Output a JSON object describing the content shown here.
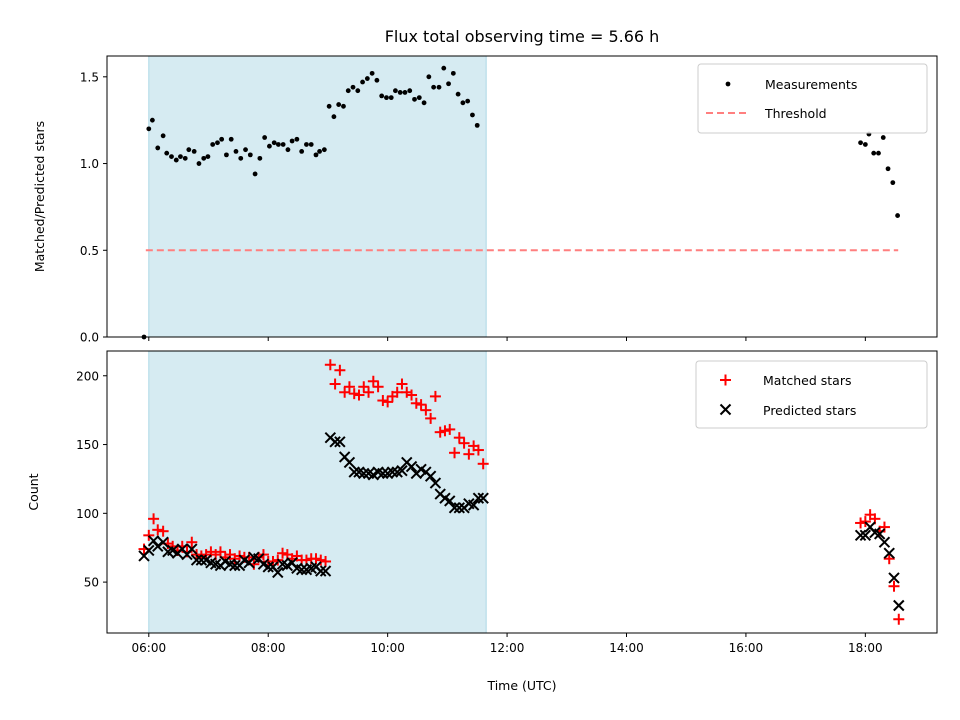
{
  "title": "Flux total observing time = 5.66 h",
  "colors": {
    "shade": "#add8e6",
    "measure": "#000000",
    "threshold": "#ff7f7f",
    "matched": "#ff0000",
    "predicted": "#000000"
  },
  "x_ticks": [
    "06:00",
    "08:00",
    "10:00",
    "12:00",
    "14:00",
    "16:00",
    "18:00"
  ],
  "xlabel": "Time (UTC)",
  "chart_data": [
    {
      "type": "scatter",
      "ylabel": "Matched/Predicted stars",
      "xlim": [
        5.3,
        19.2
      ],
      "ylim": [
        0,
        1.62
      ],
      "y_ticks": [
        "0.0",
        "0.5",
        "1.0",
        "1.5"
      ],
      "shaded_span": [
        6.0,
        11.65
      ],
      "legend": {
        "placement": "top-right",
        "measure_label": "Measurements",
        "threshold_label": "Threshold"
      },
      "threshold": {
        "value": 0.5,
        "x_range": [
          5.95,
          18.55
        ]
      },
      "measurements": [
        [
          5.92,
          0.0
        ],
        [
          6.0,
          1.2
        ],
        [
          6.06,
          1.25
        ],
        [
          6.15,
          1.09
        ],
        [
          6.24,
          1.16
        ],
        [
          6.3,
          1.06
        ],
        [
          6.38,
          1.04
        ],
        [
          6.46,
          1.02
        ],
        [
          6.53,
          1.04
        ],
        [
          6.61,
          1.03
        ],
        [
          6.67,
          1.08
        ],
        [
          6.76,
          1.07
        ],
        [
          6.84,
          1.0
        ],
        [
          6.92,
          1.03
        ],
        [
          6.99,
          1.04
        ],
        [
          7.07,
          1.11
        ],
        [
          7.15,
          1.12
        ],
        [
          7.22,
          1.14
        ],
        [
          7.3,
          1.05
        ],
        [
          7.38,
          1.14
        ],
        [
          7.46,
          1.07
        ],
        [
          7.54,
          1.03
        ],
        [
          7.62,
          1.08
        ],
        [
          7.7,
          1.05
        ],
        [
          7.78,
          0.94
        ],
        [
          7.86,
          1.03
        ],
        [
          7.94,
          1.15
        ],
        [
          8.02,
          1.1
        ],
        [
          8.1,
          1.12
        ],
        [
          8.17,
          1.11
        ],
        [
          8.25,
          1.11
        ],
        [
          8.33,
          1.08
        ],
        [
          8.4,
          1.13
        ],
        [
          8.48,
          1.14
        ],
        [
          8.56,
          1.07
        ],
        [
          8.64,
          1.11
        ],
        [
          8.72,
          1.11
        ],
        [
          8.8,
          1.05
        ],
        [
          8.86,
          1.07
        ],
        [
          8.94,
          1.08
        ],
        [
          9.02,
          1.33
        ],
        [
          9.1,
          1.27
        ],
        [
          9.18,
          1.34
        ],
        [
          9.26,
          1.33
        ],
        [
          9.34,
          1.42
        ],
        [
          9.42,
          1.44
        ],
        [
          9.5,
          1.42
        ],
        [
          9.58,
          1.47
        ],
        [
          9.66,
          1.49
        ],
        [
          9.74,
          1.52
        ],
        [
          9.82,
          1.48
        ],
        [
          9.9,
          1.39
        ],
        [
          9.98,
          1.38
        ],
        [
          10.06,
          1.38
        ],
        [
          10.13,
          1.42
        ],
        [
          10.21,
          1.41
        ],
        [
          10.29,
          1.41
        ],
        [
          10.37,
          1.42
        ],
        [
          10.45,
          1.37
        ],
        [
          10.53,
          1.38
        ],
        [
          10.61,
          1.35
        ],
        [
          10.69,
          1.5
        ],
        [
          10.77,
          1.44
        ],
        [
          10.86,
          1.44
        ],
        [
          10.94,
          1.55
        ],
        [
          11.02,
          1.46
        ],
        [
          11.1,
          1.52
        ],
        [
          11.18,
          1.4
        ],
        [
          11.26,
          1.35
        ],
        [
          11.34,
          1.36
        ],
        [
          11.42,
          1.28
        ],
        [
          11.5,
          1.22
        ],
        [
          17.92,
          1.12
        ],
        [
          18.0,
          1.11
        ],
        [
          18.06,
          1.17
        ],
        [
          18.14,
          1.06
        ],
        [
          18.22,
          1.06
        ],
        [
          18.3,
          1.15
        ],
        [
          18.38,
          0.97
        ],
        [
          18.46,
          0.89
        ],
        [
          18.54,
          0.7
        ]
      ]
    },
    {
      "type": "scatter",
      "ylabel": "Count",
      "xlim": [
        5.3,
        19.2
      ],
      "ylim": [
        13,
        218
      ],
      "y_ticks": [
        "50",
        "100",
        "150",
        "200"
      ],
      "shaded_span": [
        6.0,
        11.65
      ],
      "legend": {
        "placement": "top-right",
        "matched_label": "Matched stars",
        "predicted_label": "Predicted stars"
      },
      "matched": [
        [
          5.92,
          74
        ],
        [
          6.0,
          84
        ],
        [
          6.08,
          96
        ],
        [
          6.15,
          88
        ],
        [
          6.24,
          87
        ],
        [
          6.32,
          78
        ],
        [
          6.4,
          76
        ],
        [
          6.48,
          73
        ],
        [
          6.56,
          76
        ],
        [
          6.64,
          72
        ],
        [
          6.72,
          79
        ],
        [
          6.8,
          70
        ],
        [
          6.88,
          69
        ],
        [
          6.96,
          70
        ],
        [
          7.04,
          72
        ],
        [
          7.12,
          70
        ],
        [
          7.2,
          72
        ],
        [
          7.28,
          68
        ],
        [
          7.36,
          70
        ],
        [
          7.44,
          67
        ],
        [
          7.52,
          69
        ],
        [
          7.6,
          68
        ],
        [
          7.68,
          68
        ],
        [
          7.76,
          63
        ],
        [
          7.84,
          68
        ],
        [
          7.92,
          70
        ],
        [
          8.0,
          65
        ],
        [
          8.08,
          65
        ],
        [
          8.16,
          66
        ],
        [
          8.24,
          71
        ],
        [
          8.32,
          70
        ],
        [
          8.4,
          67
        ],
        [
          8.48,
          69
        ],
        [
          8.56,
          66
        ],
        [
          8.64,
          66
        ],
        [
          8.72,
          67
        ],
        [
          8.8,
          67
        ],
        [
          8.88,
          66
        ],
        [
          8.96,
          65
        ],
        [
          9.04,
          208
        ],
        [
          9.12,
          194
        ],
        [
          9.2,
          204
        ],
        [
          9.28,
          188
        ],
        [
          9.36,
          192
        ],
        [
          9.44,
          187
        ],
        [
          9.52,
          186
        ],
        [
          9.6,
          192
        ],
        [
          9.68,
          188
        ],
        [
          9.76,
          196
        ],
        [
          9.84,
          192
        ],
        [
          9.92,
          182
        ],
        [
          10.0,
          181
        ],
        [
          10.08,
          185
        ],
        [
          10.16,
          188
        ],
        [
          10.24,
          194
        ],
        [
          10.32,
          188
        ],
        [
          10.4,
          186
        ],
        [
          10.48,
          180
        ],
        [
          10.56,
          179
        ],
        [
          10.64,
          175
        ],
        [
          10.72,
          169
        ],
        [
          10.8,
          185
        ],
        [
          10.88,
          159
        ],
        [
          10.96,
          160
        ],
        [
          11.04,
          161
        ],
        [
          11.12,
          144
        ],
        [
          11.2,
          155
        ],
        [
          11.28,
          151
        ],
        [
          11.36,
          143
        ],
        [
          11.44,
          149
        ],
        [
          11.52,
          146
        ],
        [
          11.6,
          136
        ],
        [
          17.92,
          93
        ],
        [
          18.0,
          94
        ],
        [
          18.08,
          99
        ],
        [
          18.16,
          96
        ],
        [
          18.24,
          87
        ],
        [
          18.32,
          90
        ],
        [
          18.4,
          67
        ],
        [
          18.48,
          47
        ],
        [
          18.56,
          23
        ]
      ],
      "predicted": [
        [
          5.92,
          69
        ],
        [
          6.0,
          73
        ],
        [
          6.08,
          80
        ],
        [
          6.15,
          76
        ],
        [
          6.24,
          79
        ],
        [
          6.32,
          72
        ],
        [
          6.4,
          73
        ],
        [
          6.48,
          71
        ],
        [
          6.56,
          74
        ],
        [
          6.64,
          70
        ],
        [
          6.72,
          74
        ],
        [
          6.8,
          66
        ],
        [
          6.88,
          66
        ],
        [
          6.96,
          66
        ],
        [
          7.04,
          64
        ],
        [
          7.12,
          63
        ],
        [
          7.2,
          62
        ],
        [
          7.28,
          65
        ],
        [
          7.36,
          63
        ],
        [
          7.44,
          62
        ],
        [
          7.52,
          62
        ],
        [
          7.6,
          66
        ],
        [
          7.68,
          64
        ],
        [
          7.76,
          68
        ],
        [
          7.84,
          67
        ],
        [
          7.92,
          63
        ],
        [
          8.0,
          61
        ],
        [
          8.08,
          61
        ],
        [
          8.16,
          57
        ],
        [
          8.24,
          63
        ],
        [
          8.32,
          62
        ],
        [
          8.4,
          64
        ],
        [
          8.48,
          60
        ],
        [
          8.56,
          59
        ],
        [
          8.64,
          59
        ],
        [
          8.72,
          60
        ],
        [
          8.8,
          61
        ],
        [
          8.88,
          58
        ],
        [
          8.96,
          58
        ],
        [
          9.04,
          155
        ],
        [
          9.12,
          152
        ],
        [
          9.2,
          152
        ],
        [
          9.28,
          141
        ],
        [
          9.36,
          137
        ],
        [
          9.44,
          130
        ],
        [
          9.52,
          130
        ],
        [
          9.6,
          129
        ],
        [
          9.68,
          129
        ],
        [
          9.76,
          128
        ],
        [
          9.84,
          130
        ],
        [
          9.92,
          129
        ],
        [
          10.0,
          129
        ],
        [
          10.08,
          130
        ],
        [
          10.16,
          130
        ],
        [
          10.24,
          131
        ],
        [
          10.32,
          137
        ],
        [
          10.4,
          134
        ],
        [
          10.48,
          129
        ],
        [
          10.56,
          132
        ],
        [
          10.64,
          130
        ],
        [
          10.72,
          127
        ],
        [
          10.8,
          122
        ],
        [
          10.88,
          114
        ],
        [
          10.96,
          111
        ],
        [
          11.04,
          109
        ],
        [
          11.12,
          104
        ],
        [
          11.2,
          104
        ],
        [
          11.28,
          104
        ],
        [
          11.36,
          107
        ],
        [
          11.44,
          106
        ],
        [
          11.52,
          111
        ],
        [
          11.6,
          111
        ],
        [
          17.92,
          84
        ],
        [
          18.0,
          84
        ],
        [
          18.08,
          90
        ],
        [
          18.16,
          86
        ],
        [
          18.24,
          85
        ],
        [
          18.32,
          79
        ],
        [
          18.4,
          71
        ],
        [
          18.48,
          53
        ],
        [
          18.56,
          33
        ]
      ]
    }
  ]
}
